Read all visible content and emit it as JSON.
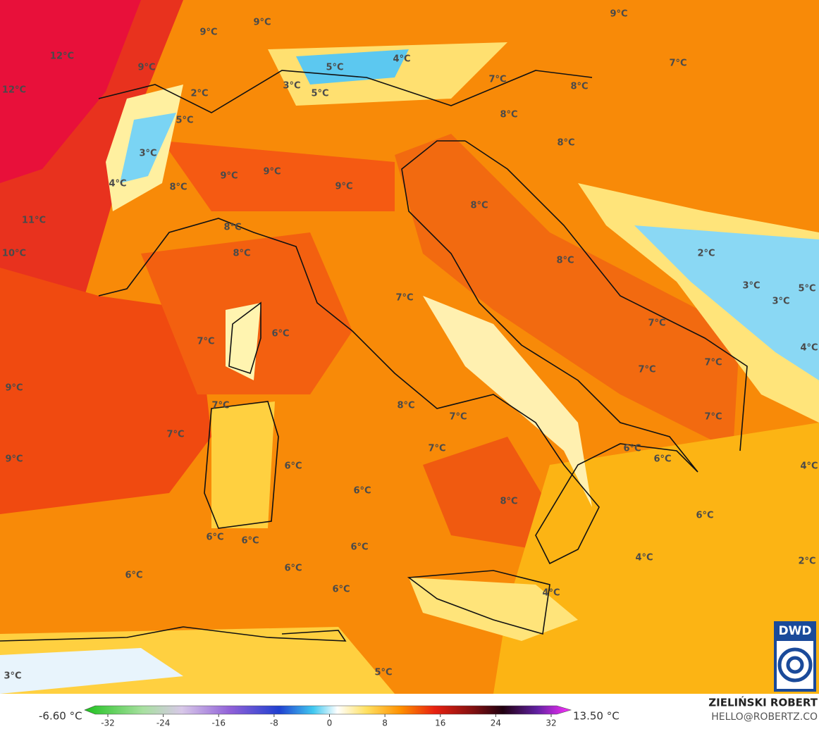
{
  "map": {
    "labels": [
      "12°C",
      "12°C",
      "9°C",
      "9°C",
      "9°C",
      "2°C",
      "5°C",
      "3°C",
      "4°C",
      "8°C",
      "9°C",
      "9°C",
      "9°C",
      "11°C",
      "10°C",
      "8°C",
      "8°C",
      "5°C",
      "4°C",
      "3°C",
      "5°C",
      "7°C",
      "7°C",
      "8°C",
      "8°C",
      "8°C",
      "9°C",
      "8°C",
      "8°C",
      "2°C",
      "3°C",
      "5°C",
      "3°C",
      "7°C",
      "6°C",
      "7°C",
      "7°C",
      "7°C",
      "7°C",
      "4°C",
      "9°C",
      "7°C",
      "8°C",
      "7°C",
      "7°C",
      "7°C",
      "7°C",
      "6°C",
      "6°C",
      "9°C",
      "6°C",
      "4°C",
      "6°C",
      "8°C",
      "6°C",
      "6°C",
      "6°C",
      "6°C",
      "4°C",
      "2°C",
      "6°C",
      "6°C",
      "6°C",
      "4°C",
      "3°C",
      "5°C"
    ]
  },
  "colorbar": {
    "ticks": [
      -32,
      -24,
      -16,
      -8,
      0,
      8,
      16,
      24,
      32
    ],
    "min_label": "-6.60 °C",
    "max_label": "13.50 °C"
  },
  "credit": {
    "author": "ZIELIŃSKI ROBERT",
    "email": "HELLO@ROBERTZ.CO"
  },
  "logo": "DWD"
}
